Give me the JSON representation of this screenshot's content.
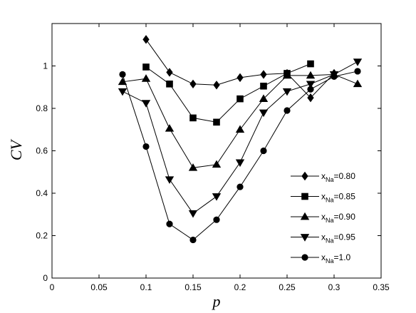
{
  "chart_data": {
    "type": "line",
    "title": "",
    "xlabel": "p",
    "ylabel": "CV",
    "xlim": [
      0,
      0.35
    ],
    "ylim": [
      0,
      1.2
    ],
    "xticks": [
      0,
      0.05,
      0.1,
      0.15,
      0.2,
      0.25,
      0.3,
      0.35
    ],
    "xtick_labels": [
      "0",
      "0.05",
      "0.1",
      "0.15",
      "0.2",
      "0.25",
      "0.3",
      "0.35"
    ],
    "yticks": [
      0,
      0.2,
      0.4,
      0.6,
      0.8,
      1
    ],
    "ytick_labels": [
      "0",
      "0.2",
      "0.4",
      "0.6",
      "0.8",
      "1"
    ],
    "grid": false,
    "legend_position": "lower-right",
    "line_color": "#000000",
    "series": [
      {
        "name": "x",
        "name_sub": "Na",
        "name_suffix": "=0.80",
        "marker": "diamond",
        "x": [
          0.1,
          0.125,
          0.15,
          0.175,
          0.2,
          0.225,
          0.25,
          0.275,
          0.3
        ],
        "y": [
          1.125,
          0.97,
          0.915,
          0.91,
          0.945,
          0.96,
          0.965,
          0.85,
          0.965
        ]
      },
      {
        "name": "x",
        "name_sub": "Na",
        "name_suffix": "=0.85",
        "marker": "square",
        "x": [
          0.1,
          0.125,
          0.15,
          0.175,
          0.2,
          0.225,
          0.25,
          0.275
        ],
        "y": [
          0.995,
          0.915,
          0.755,
          0.735,
          0.845,
          0.905,
          0.965,
          1.01
        ]
      },
      {
        "name": "x",
        "name_sub": "Na",
        "name_suffix": "=0.90",
        "marker": "triangle-up",
        "x": [
          0.075,
          0.1,
          0.125,
          0.15,
          0.175,
          0.2,
          0.225,
          0.25,
          0.275,
          0.3,
          0.325
        ],
        "y": [
          0.925,
          0.94,
          0.705,
          0.52,
          0.535,
          0.7,
          0.845,
          0.955,
          0.955,
          0.96,
          0.915
        ]
      },
      {
        "name": "x",
        "name_sub": "Na",
        "name_suffix": "=0.95",
        "marker": "triangle-down",
        "x": [
          0.075,
          0.1,
          0.125,
          0.15,
          0.175,
          0.2,
          0.225,
          0.25,
          0.275,
          0.3,
          0.325
        ],
        "y": [
          0.88,
          0.825,
          0.465,
          0.305,
          0.385,
          0.545,
          0.78,
          0.88,
          0.915,
          0.96,
          1.02
        ]
      },
      {
        "name": "x",
        "name_sub": "Na",
        "name_suffix": "=1.0",
        "marker": "circle",
        "x": [
          0.075,
          0.1,
          0.125,
          0.15,
          0.175,
          0.2,
          0.225,
          0.25,
          0.275,
          0.3,
          0.325
        ],
        "y": [
          0.96,
          0.62,
          0.255,
          0.18,
          0.275,
          0.43,
          0.6,
          0.79,
          0.89,
          0.95,
          0.975
        ]
      }
    ]
  }
}
